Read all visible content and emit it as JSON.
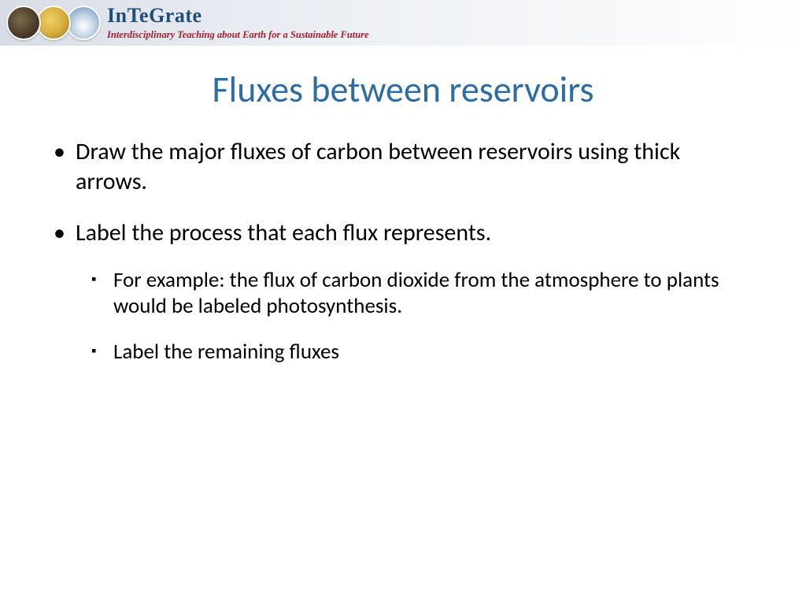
{
  "banner": {
    "brand": "InTeGrate",
    "tagline": "Interdisciplinary Teaching about Earth for a Sustainable Future",
    "brand_color": "#1f4e79",
    "tagline_color": "#a02030",
    "circle_colors": [
      "#4a3a2a",
      "#d8b040",
      "#6890b8"
    ]
  },
  "slide": {
    "title": "Fluxes between reservoirs",
    "title_color": "#2e6ca4",
    "title_fontsize": 46,
    "body_fontsize_l1": 30,
    "body_fontsize_l2": 27,
    "text_color": "#000000",
    "background_color": "#ffffff",
    "bullets": [
      {
        "text": "Draw the major fluxes of carbon between reservoirs using thick arrows.",
        "children": []
      },
      {
        "text": "Label the process that each flux represents.",
        "children": [
          {
            "text": "For example: the flux of carbon dioxide from the atmosphere to plants would be labeled photosynthesis."
          },
          {
            "text": "Label the remaining fluxes"
          }
        ]
      }
    ]
  }
}
